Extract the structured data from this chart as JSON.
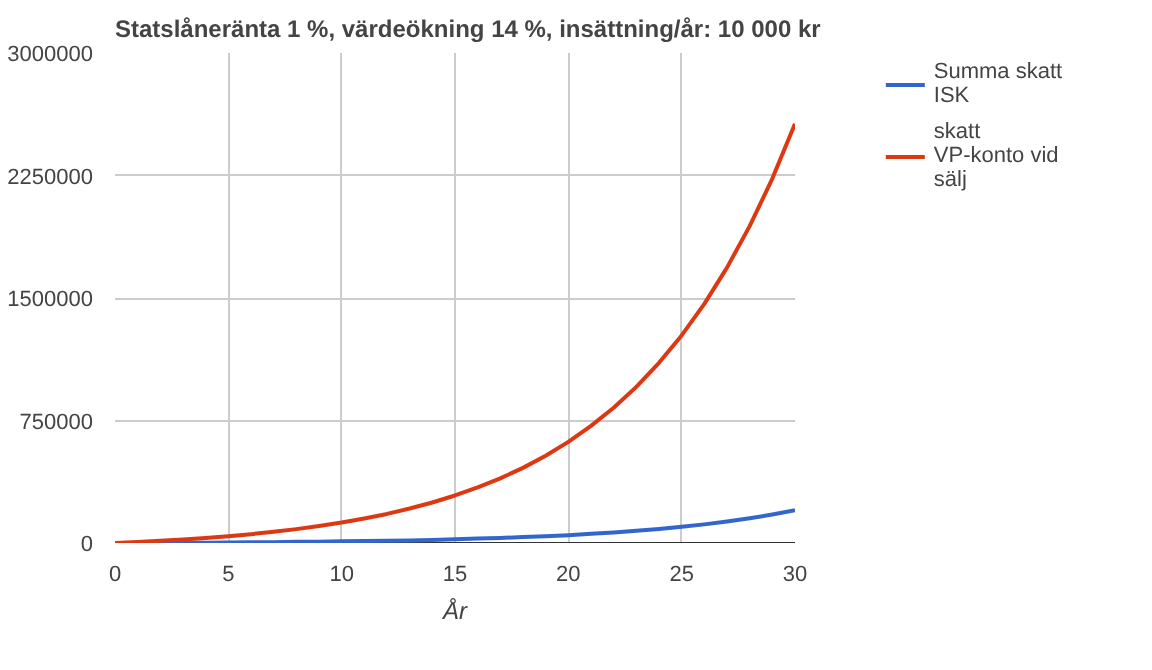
{
  "chart_data": {
    "type": "line",
    "title": "Statslåneränta 1 %, värdeökning 14 %, insättning/år: 10 000 kr",
    "xlabel": "År",
    "x": [
      0,
      1,
      2,
      3,
      4,
      5,
      6,
      7,
      8,
      9,
      10,
      11,
      12,
      13,
      14,
      15,
      16,
      17,
      18,
      19,
      20,
      21,
      22,
      23,
      24,
      25,
      26,
      27,
      28,
      29,
      30
    ],
    "series": [
      {
        "name": "Summa skatt ISK",
        "color": "#3366cc",
        "values": [
          0,
          0,
          1000,
          2000,
          2000,
          3000,
          4000,
          5000,
          7000,
          8000,
          10000,
          12000,
          14000,
          16000,
          19000,
          23000,
          27000,
          31000,
          36000,
          42000,
          48000,
          56000,
          65000,
          75000,
          86000,
          99000,
          114000,
          131000,
          151000,
          174000,
          200000
        ]
      },
      {
        "name": "skatt VP-konto vid sälj",
        "color": "#dc3912",
        "values": [
          0,
          6000,
          14000,
          22000,
          31000,
          42000,
          54000,
          69000,
          85000,
          104000,
          125000,
          150000,
          178000,
          211000,
          248000,
          291000,
          340000,
          396000,
          460000,
          534000,
          619000,
          717000,
          828000,
          956000,
          1103000,
          1271000,
          1464000,
          1686000,
          1940000,
          2231000,
          2566000
        ]
      }
    ],
    "xlim": [
      0,
      30
    ],
    "xticks": [
      0,
      5,
      10,
      15,
      20,
      25,
      30
    ],
    "ylim": [
      0,
      3000000
    ],
    "yticks": [
      0,
      750000,
      1500000,
      2250000,
      3000000
    ],
    "grid": true,
    "legend": "right",
    "marker": "none",
    "line_style": "solid"
  }
}
